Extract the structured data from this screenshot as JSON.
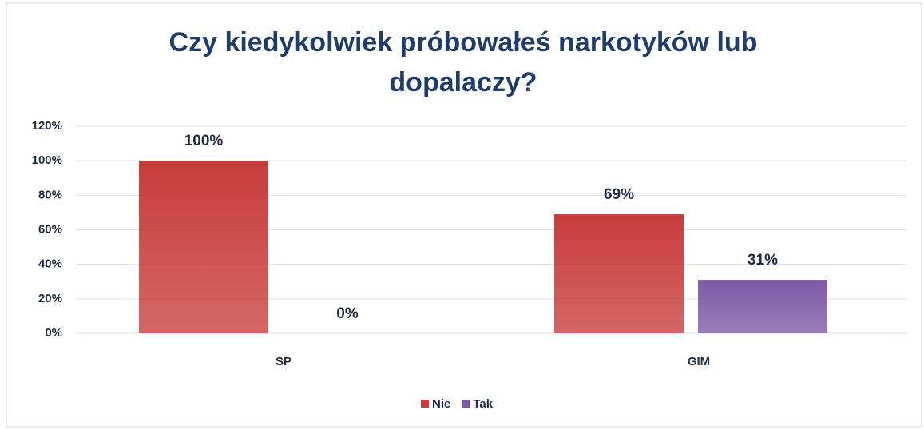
{
  "chart_data": {
    "type": "bar",
    "title": "Czy kiedykolwiek próbowałeś narkotyków lub dopalaczy?",
    "categories": [
      "SP",
      "GIM"
    ],
    "series": [
      {
        "name": "Nie",
        "color": "#c83c3b",
        "values": [
          100,
          69
        ],
        "value_labels": [
          "100%",
          "69%"
        ]
      },
      {
        "name": "Tak",
        "color": "#7d5aa6",
        "values": [
          0,
          31
        ],
        "value_labels": [
          "0%",
          "31%"
        ]
      }
    ],
    "ylim": [
      0,
      120
    ],
    "yticks": [
      {
        "value": 0,
        "label": "0%"
      },
      {
        "value": 20,
        "label": "20%"
      },
      {
        "value": 40,
        "label": "40%"
      },
      {
        "value": 60,
        "label": "60%"
      },
      {
        "value": 80,
        "label": "80%"
      },
      {
        "value": 100,
        "label": "100%"
      },
      {
        "value": 120,
        "label": "120%"
      }
    ],
    "grid": true,
    "legend": "bottom"
  }
}
